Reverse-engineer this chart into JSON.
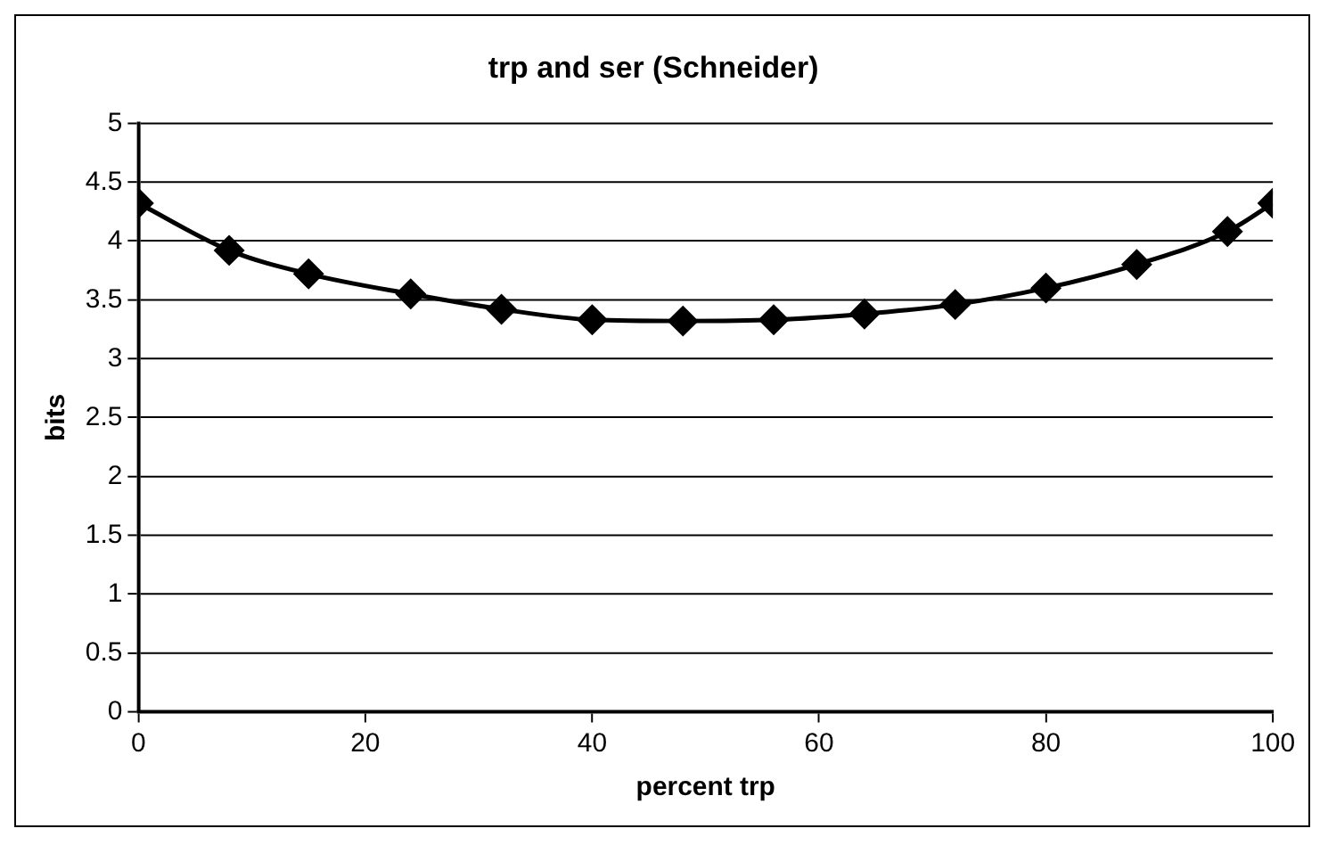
{
  "chart_data": {
    "type": "line",
    "title": "trp and ser (Schneider)",
    "xlabel": "percent trp",
    "ylabel": "bits",
    "x": [
      0,
      8,
      15,
      24,
      32,
      40,
      48,
      56,
      64,
      72,
      80,
      88,
      96,
      100
    ],
    "series": [
      {
        "color": "#000000",
        "values": [
          4.32,
          3.92,
          3.72,
          3.55,
          3.42,
          3.33,
          3.32,
          3.33,
          3.38,
          3.46,
          3.6,
          3.8,
          4.08,
          4.32
        ]
      }
    ],
    "xlim": [
      0,
      100
    ],
    "xticks": [
      0,
      20,
      40,
      60,
      80,
      100
    ],
    "ylim": [
      0,
      5
    ],
    "yticks": [
      0,
      0.5,
      1,
      1.5,
      2,
      2.5,
      3,
      3.5,
      4,
      4.5,
      5
    ],
    "grid": "y",
    "legend": false,
    "marker": "diamond",
    "line_style": "solid"
  }
}
